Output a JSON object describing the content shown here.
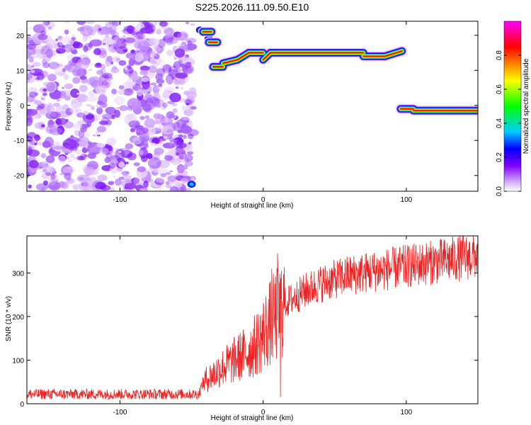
{
  "title": "S225.2026.111.09.50.E10",
  "chart_data": [
    {
      "type": "heatmap",
      "xlabel": "Height of straight line (km)",
      "ylabel": "Frequency (Hz)",
      "xlim": [
        -165,
        150
      ],
      "ylim": [
        -24.5,
        24
      ],
      "xticks": [
        -100,
        0,
        100
      ],
      "xtick_labels": [
        "-100",
        "0",
        "100"
      ],
      "yticks": [
        -20,
        -10,
        0,
        10,
        20
      ],
      "ytick_labels": [
        "-20",
        "-10",
        "0",
        "10",
        "20"
      ],
      "grid": false,
      "noise_region_x": [
        -165,
        -52
      ],
      "echo_segments": [
        {
          "x": [
            -42,
            -36
          ],
          "freq": [
            21,
            21
          ]
        },
        {
          "x": [
            -38,
            -32
          ],
          "freq": [
            18,
            18
          ]
        },
        {
          "x": [
            -35,
            -28
          ],
          "freq": [
            11,
            11
          ]
        },
        {
          "x": [
            -28,
            -18
          ],
          "freq": [
            12,
            13
          ]
        },
        {
          "x": [
            -18,
            -10
          ],
          "freq": [
            13,
            15
          ]
        },
        {
          "x": [
            -10,
            0
          ],
          "freq": [
            15,
            15
          ]
        },
        {
          "x": [
            0,
            5
          ],
          "freq": [
            13,
            15
          ]
        },
        {
          "x": [
            5,
            70
          ],
          "freq": [
            15,
            15
          ]
        },
        {
          "x": [
            70,
            85
          ],
          "freq": [
            14,
            14
          ]
        },
        {
          "x": [
            85,
            97
          ],
          "freq": [
            14,
            15.5
          ]
        },
        {
          "x": [
            96,
            105
          ],
          "freq": [
            -1,
            -1
          ]
        },
        {
          "x": [
            105,
            150
          ],
          "freq": [
            -1.5,
            -1.5
          ]
        }
      ],
      "colorbar": {
        "label": "Normalized spectral amplitude",
        "range": [
          0,
          1
        ],
        "ticks": [
          0.0,
          0.2,
          0.4,
          0.6,
          0.8
        ],
        "tick_labels": [
          "0.0",
          "0.2",
          "0.4",
          "0.6",
          "0.8"
        ],
        "colors": [
          "#ffffff",
          "#d9b3ff",
          "#8000ff",
          "#0000ff",
          "#00ccff",
          "#00ff00",
          "#ffff00",
          "#ff8000",
          "#ff0000",
          "#ff00ff"
        ]
      }
    },
    {
      "type": "line",
      "xlabel": "Height of straight line (km)",
      "ylabel": "SNR (10 * v/v)",
      "xlim": [
        -165,
        150
      ],
      "ylim": [
        0,
        385
      ],
      "xticks": [
        -100,
        0,
        100
      ],
      "xtick_labels": [
        "-100",
        "0",
        "100"
      ],
      "yticks": [
        0,
        100,
        200,
        300
      ],
      "ytick_labels": [
        "0",
        "100",
        "200",
        "300"
      ],
      "grid": false,
      "line_color": "#ee2222",
      "trend": {
        "x": [
          -165,
          -45,
          -42,
          -30,
          -20,
          -10,
          -5,
          0,
          5,
          10,
          15,
          20,
          30,
          40,
          60,
          80,
          100,
          120,
          140,
          150
        ],
        "y": [
          22,
          22,
          50,
          80,
          100,
          120,
          135,
          160,
          185,
          205,
          230,
          240,
          260,
          275,
          295,
          305,
          315,
          325,
          335,
          340
        ]
      },
      "spikes": [
        {
          "x": 6,
          "y": 310
        },
        {
          "x": 10,
          "y": 345
        },
        {
          "x": 12,
          "y": 15
        }
      ]
    }
  ]
}
